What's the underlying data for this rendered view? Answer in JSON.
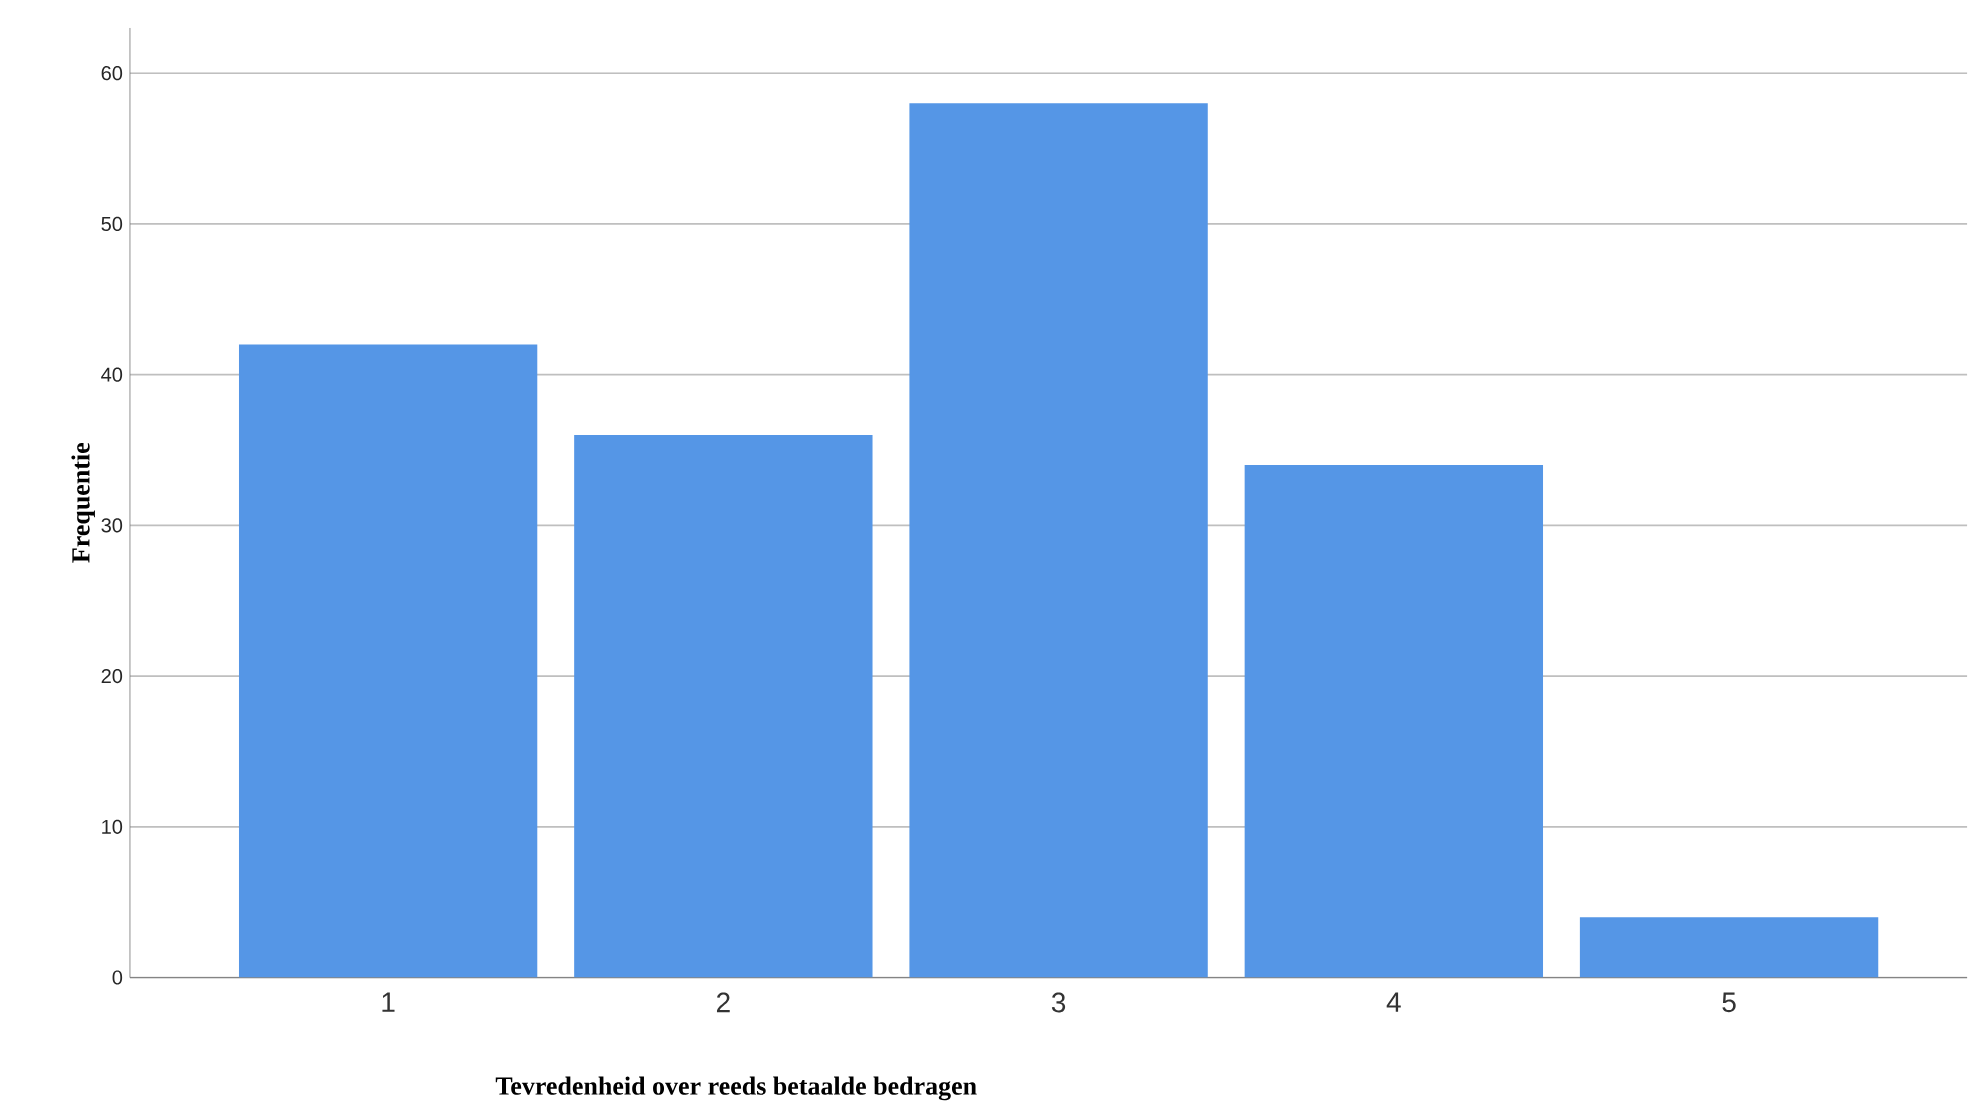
{
  "chart_data": {
    "type": "bar",
    "xlabel": "Tevredenheid over reeds betaalde bedragen",
    "ylabel": "Frequentie",
    "categories": [
      "1",
      "2",
      "3",
      "4",
      "5"
    ],
    "values": [
      42,
      36,
      58,
      34,
      4
    ],
    "color": "#5596e6",
    "ylim": [
      0,
      63
    ],
    "yticks": [
      0,
      10,
      20,
      30,
      40,
      50,
      60
    ],
    "grid": "y"
  }
}
